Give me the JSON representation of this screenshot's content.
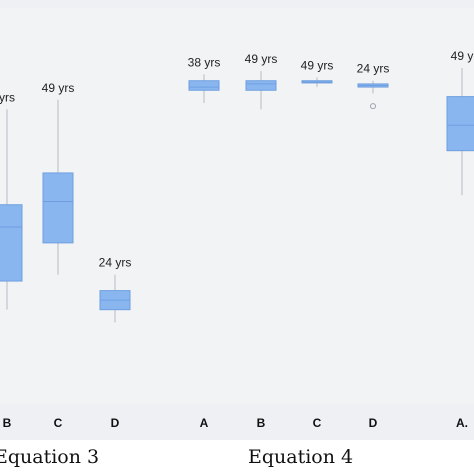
{
  "chart_data": {
    "type": "box",
    "y_range": [
      0,
      100
    ],
    "groups": [
      {
        "label": "Equation 3",
        "categories": [
          "B",
          "C",
          "D"
        ],
        "boxes": [
          {
            "category": "B",
            "whisker_low": 24,
            "q1": 33,
            "median": 50,
            "q3": 57,
            "whisker_high": 87,
            "annotation": "yrs"
          },
          {
            "category": "C",
            "whisker_low": 35,
            "q1": 45,
            "median": 58,
            "q3": 67,
            "whisker_high": 90,
            "annotation": "49 yrs"
          },
          {
            "category": "D",
            "whisker_low": 20,
            "q1": 24,
            "median": 27,
            "q3": 30,
            "whisker_high": 35,
            "annotation": "24 yrs"
          }
        ]
      },
      {
        "label": "Equation 4",
        "categories": [
          "A",
          "B",
          "C",
          "D"
        ],
        "boxes": [
          {
            "category": "A",
            "whisker_low": 89,
            "q1": 93,
            "median": 94,
            "q3": 96,
            "whisker_high": 98,
            "annotation": "38 yrs"
          },
          {
            "category": "B",
            "whisker_low": 87,
            "q1": 93,
            "median": 95,
            "q3": 96,
            "whisker_high": 99,
            "annotation": "49 yrs"
          },
          {
            "category": "C",
            "whisker_low": 94,
            "q1": 95.3,
            "median": 95.6,
            "q3": 96,
            "whisker_high": 97,
            "annotation": "49 yrs"
          },
          {
            "category": "D",
            "whisker_low": 92,
            "q1": 94,
            "median": 94.5,
            "q3": 95,
            "whisker_high": 96,
            "annotation": "24 yrs",
            "outliers": [
              88
            ]
          }
        ]
      },
      {
        "label": "",
        "categories": [
          "A."
        ],
        "boxes": [
          {
            "category": "A.",
            "whisker_low": 60,
            "q1": 74,
            "median": 82,
            "q3": 91,
            "whisker_high": 100,
            "annotation": "49 y"
          }
        ]
      }
    ],
    "colors": {
      "box_fill": "#8ab6f0",
      "box_stroke": "#6f9fe0",
      "whisker": "#b5bcc6",
      "plot_background": "#f2f3f5",
      "axis_band": "#eef0f3"
    },
    "grid": false,
    "legend": "none"
  }
}
